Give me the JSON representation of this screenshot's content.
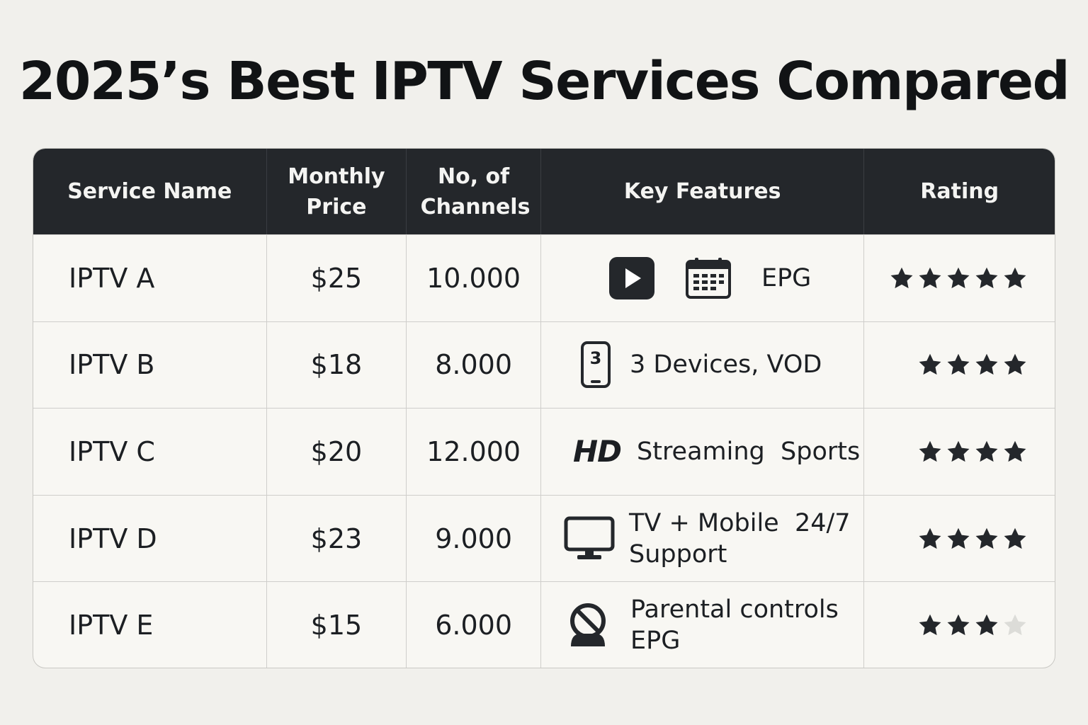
{
  "title": "2025’s Best IPTV Services Compared",
  "colors": {
    "header_bg": "#24272b",
    "star_filled": "#24272b",
    "star_empty": "#dcdcd8"
  },
  "columns": {
    "service": "Service Name",
    "price": "Monthly Price",
    "channels": "No, of Channels",
    "features": "Key Features",
    "rating": "Rating"
  },
  "rows": [
    {
      "name": "IPTV A",
      "price": "$25",
      "channels": "10.000",
      "icons": [
        "play-icon",
        "calendar-icon"
      ],
      "features": "EPG",
      "rating": 5
    },
    {
      "name": "IPTV B",
      "price": "$18",
      "channels": "8.000",
      "icons": [
        "phone-icon"
      ],
      "icon_label": "3",
      "features": "3 Devices, VOD",
      "rating": 4
    },
    {
      "name": "IPTV C",
      "price": "$20",
      "channels": "12.000",
      "badge": "HD",
      "features": "Streaming  Sports",
      "rating": 4
    },
    {
      "name": "IPTV D",
      "price": "$23",
      "channels": "9.000",
      "icons": [
        "monitor-icon"
      ],
      "features_line1": "TV + Mobile  24/7",
      "features_line2": "Support",
      "rating": 4
    },
    {
      "name": "IPTV E",
      "price": "$15",
      "channels": "6.000",
      "icons": [
        "parental-lock-icon"
      ],
      "features_line1": "Parental controls",
      "features_line2": "EPG",
      "rating": 3
    }
  ],
  "max_rating": 5
}
